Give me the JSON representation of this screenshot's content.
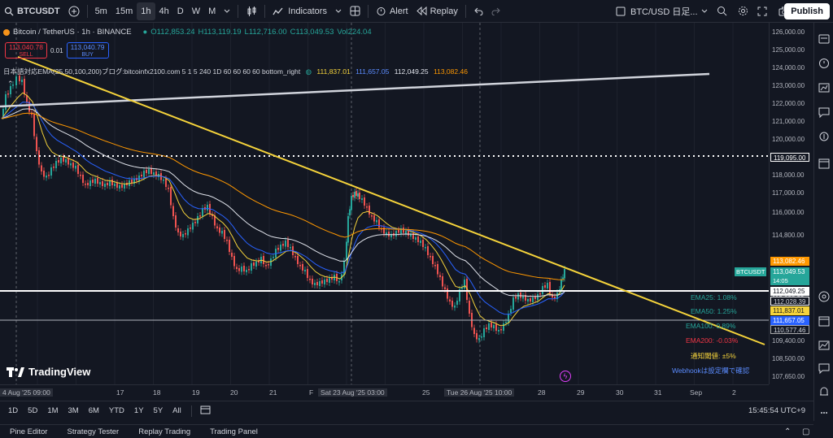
{
  "topbar": {
    "symbol": "BTCUSDT",
    "timeframes": [
      "5m",
      "15m",
      "1h",
      "4h",
      "D",
      "W",
      "M"
    ],
    "active_timeframe": "1h",
    "indicators_label": "Indicators",
    "alert_label": "Alert",
    "replay_label": "Replay",
    "layout_name": "BTC/USD 日足...",
    "publish_label": "Publish"
  },
  "legend": {
    "title": "Bitcoin / TetherUS · 1h · BINANCE",
    "o": "O112,853.24",
    "h": "H113,119.19",
    "l": "L112,716.00",
    "c": "C113,049.53",
    "vol": "Vol224.04"
  },
  "trade": {
    "sell_price": "113,040.78",
    "sell_label": "SELL",
    "spread": "0.01",
    "buy_price": "113,040.79",
    "buy_label": "BUY"
  },
  "indicator": {
    "name": "日本語対応EMA(25,50,100,200)ブログ:bitcoinfx2100.com 5 1 5 240 1D 60 60 60 60 bottom_right",
    "v1": "111,837.01",
    "v2": "111,657.05",
    "v3": "112,049.25",
    "v4": "113,082.46"
  },
  "price_axis": [
    "126,000.00",
    "125,000.00",
    "124,000.00",
    "123,000.00",
    "122,000.00",
    "121,000.00",
    "120,000.00",
    "119,095.00",
    "118,000.00",
    "117,000.00",
    "116,000.00",
    "114,800.00",
    "113,082.46",
    "113,049.53",
    "14:05",
    "112,049.25",
    "112,028.39",
    "111,837.01",
    "111,657.05",
    "110,577.46",
    "109,400.00",
    "108,500.00",
    "107,650.00"
  ],
  "ema_panel": {
    "ema25": "EMA25: 1.08%",
    "ema50": "EMA50: 1.25%",
    "ema100": "EMA100: 0.89%",
    "ema200": "EMA200: -0.03%",
    "threshold": "通知閾値: ±5%",
    "webhook": "Webhookは設定欄で確認"
  },
  "current_symbol_tag": "BTCUSDT",
  "brand": "TradingView",
  "time_axis": [
    "4 Aug '25  09:00",
    "17",
    "18",
    "19",
    "20",
    "21",
    "Sat 23 Aug '25  03:00",
    "25",
    "Tue 26 Aug '25  10:00",
    "28",
    "29",
    "30",
    "31",
    "Sep",
    "2"
  ],
  "time_axis_prefix_f": "F",
  "ranges": [
    "1D",
    "5D",
    "1M",
    "3M",
    "6M",
    "YTD",
    "1Y",
    "5Y",
    "All"
  ],
  "clock": "15:45:54 UTC+9",
  "panels": [
    "Pine Editor",
    "Strategy Tester",
    "Replay Trading",
    "Trading Panel"
  ],
  "colors": {
    "background": "#131722",
    "up": "#26a69a",
    "down": "#ef5350",
    "trendline": "#f5d33b",
    "ema25": "#f5d33b",
    "ema50": "#2962ff",
    "ema100": "#e0e3eb",
    "ema200": "#ff9800"
  }
}
